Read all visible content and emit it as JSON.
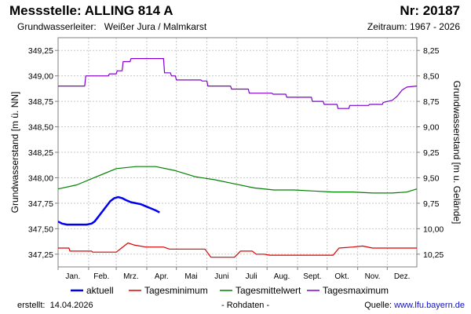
{
  "header": {
    "station_label": "Messstelle:",
    "station_name": "ALLING 814 A",
    "nr_label": "Nr:",
    "nr_value": "20187",
    "aquifer_label": "Grundwasserleiter:",
    "aquifer_value": "Weißer Jura / Malmkarst",
    "period_label": "Zeitraum:",
    "period_value": "1967 - 2026"
  },
  "footer": {
    "created_label": "erstellt:",
    "created_date": "14.04.2026",
    "raw_data_note": "- Rohdaten -",
    "source_label": "Quelle:",
    "source_link": "www.lfu.bayern.de"
  },
  "colors": {
    "aktuell": "#0000ee",
    "tagesminimum": "#dd0000",
    "tagesmittelwert": "#008000",
    "tagesmaximum": "#8000d0",
    "grid": "#c8c8c8",
    "axis": "#808080"
  },
  "chart_data": {
    "type": "line",
    "x_unit": "day of year",
    "xlim": [
      1,
      365
    ],
    "month_labels": [
      "Jan.",
      "Feb.",
      "Mrz.",
      "Apr.",
      "Mai",
      "Juni",
      "Juli",
      "Aug.",
      "Sept.",
      "Okt.",
      "Nov.",
      "Dez."
    ],
    "month_label_day": [
      16,
      45,
      75,
      106,
      136,
      167,
      197,
      228,
      259,
      289,
      320,
      350
    ],
    "month_start_day": [
      1,
      32,
      60,
      91,
      121,
      152,
      182,
      213,
      244,
      274,
      305,
      335
    ],
    "y_left": {
      "label": "Grundwasserstand [m ü. NN]",
      "ylim": [
        347.125,
        349.375
      ],
      "ticks": [
        "349,25",
        "349,00",
        "348,75",
        "348,50",
        "348,25",
        "348,00",
        "347,75",
        "347,50",
        "347,25"
      ],
      "tick_values": [
        349.25,
        349.0,
        348.75,
        348.5,
        348.25,
        348.0,
        347.75,
        347.5,
        347.25
      ]
    },
    "y_right": {
      "label": "Grundwasserstand [m u. Gelände]",
      "inverted": true,
      "ground_level": 357.5,
      "ticks": [
        "8,25",
        "8,50",
        "8,75",
        "9,00",
        "9,25",
        "9,50",
        "9,75",
        "10,00",
        "10,25"
      ],
      "tick_values": [
        8.25,
        8.5,
        8.75,
        9.0,
        9.25,
        9.5,
        9.75,
        10.0,
        10.25
      ]
    },
    "grid": true,
    "legend_position": "bottom",
    "series": [
      {
        "name": "aktuell",
        "color_key": "aktuell",
        "x": [
          1,
          5,
          10,
          15,
          20,
          25,
          30,
          35,
          38,
          42,
          46,
          50,
          54,
          58,
          62,
          66,
          70,
          75,
          80,
          85,
          90,
          95,
          100,
          104
        ],
        "y": [
          347.57,
          347.55,
          347.54,
          347.54,
          347.54,
          347.54,
          347.54,
          347.55,
          347.57,
          347.62,
          347.67,
          347.72,
          347.77,
          347.8,
          347.81,
          347.8,
          347.78,
          347.76,
          347.75,
          347.74,
          347.72,
          347.7,
          347.68,
          347.66
        ]
      },
      {
        "name": "Tagesminimum",
        "color_key": "tagesminimum",
        "x": [
          1,
          12,
          13,
          35,
          36,
          60,
          68,
          72,
          78,
          84,
          90,
          108,
          114,
          150,
          156,
          180,
          186,
          198,
          202,
          210,
          216,
          280,
          286,
          300,
          310,
          320,
          365
        ],
        "y": [
          347.31,
          347.31,
          347.28,
          347.28,
          347.27,
          347.27,
          347.33,
          347.36,
          347.34,
          347.33,
          347.32,
          347.32,
          347.3,
          347.3,
          347.22,
          347.22,
          347.28,
          347.28,
          347.25,
          347.25,
          347.24,
          347.24,
          347.31,
          347.32,
          347.33,
          347.31,
          347.31
        ]
      },
      {
        "name": "Tagesmittelwert",
        "color_key": "tagesmittelwert",
        "x": [
          1,
          20,
          40,
          60,
          80,
          100,
          120,
          140,
          160,
          180,
          200,
          220,
          240,
          260,
          280,
          300,
          320,
          340,
          355,
          365
        ],
        "y": [
          347.89,
          347.93,
          348.01,
          348.09,
          348.11,
          348.11,
          348.07,
          348.01,
          347.98,
          347.94,
          347.9,
          347.88,
          347.88,
          347.87,
          347.86,
          347.86,
          347.85,
          347.85,
          347.86,
          347.89
        ],
        "mark_sizes_note": ""
      },
      {
        "name": "Tagesmaximum",
        "color_key": "tagesmaximum",
        "x": [
          1,
          28,
          29,
          52,
          53,
          60,
          61,
          66,
          67,
          74,
          75,
          90,
          108,
          109,
          115,
          116,
          120,
          121,
          146,
          147,
          152,
          153,
          176,
          177,
          194,
          195,
          218,
          219,
          232,
          233,
          258,
          259,
          270,
          271,
          284,
          285,
          296,
          297,
          316,
          317,
          330,
          331,
          340,
          345,
          350,
          355,
          365
        ],
        "y": [
          348.9,
          348.9,
          349.0,
          349.0,
          349.02,
          349.02,
          349.05,
          349.05,
          349.14,
          349.14,
          349.17,
          349.17,
          349.17,
          349.03,
          349.03,
          349.0,
          349.0,
          348.96,
          348.96,
          348.95,
          348.95,
          348.9,
          348.9,
          348.87,
          348.87,
          348.83,
          348.83,
          348.82,
          348.82,
          348.79,
          348.79,
          348.75,
          348.75,
          348.72,
          348.72,
          348.68,
          348.68,
          348.71,
          348.71,
          348.72,
          348.72,
          348.74,
          348.76,
          348.8,
          348.86,
          348.89,
          348.9
        ]
      }
    ]
  }
}
